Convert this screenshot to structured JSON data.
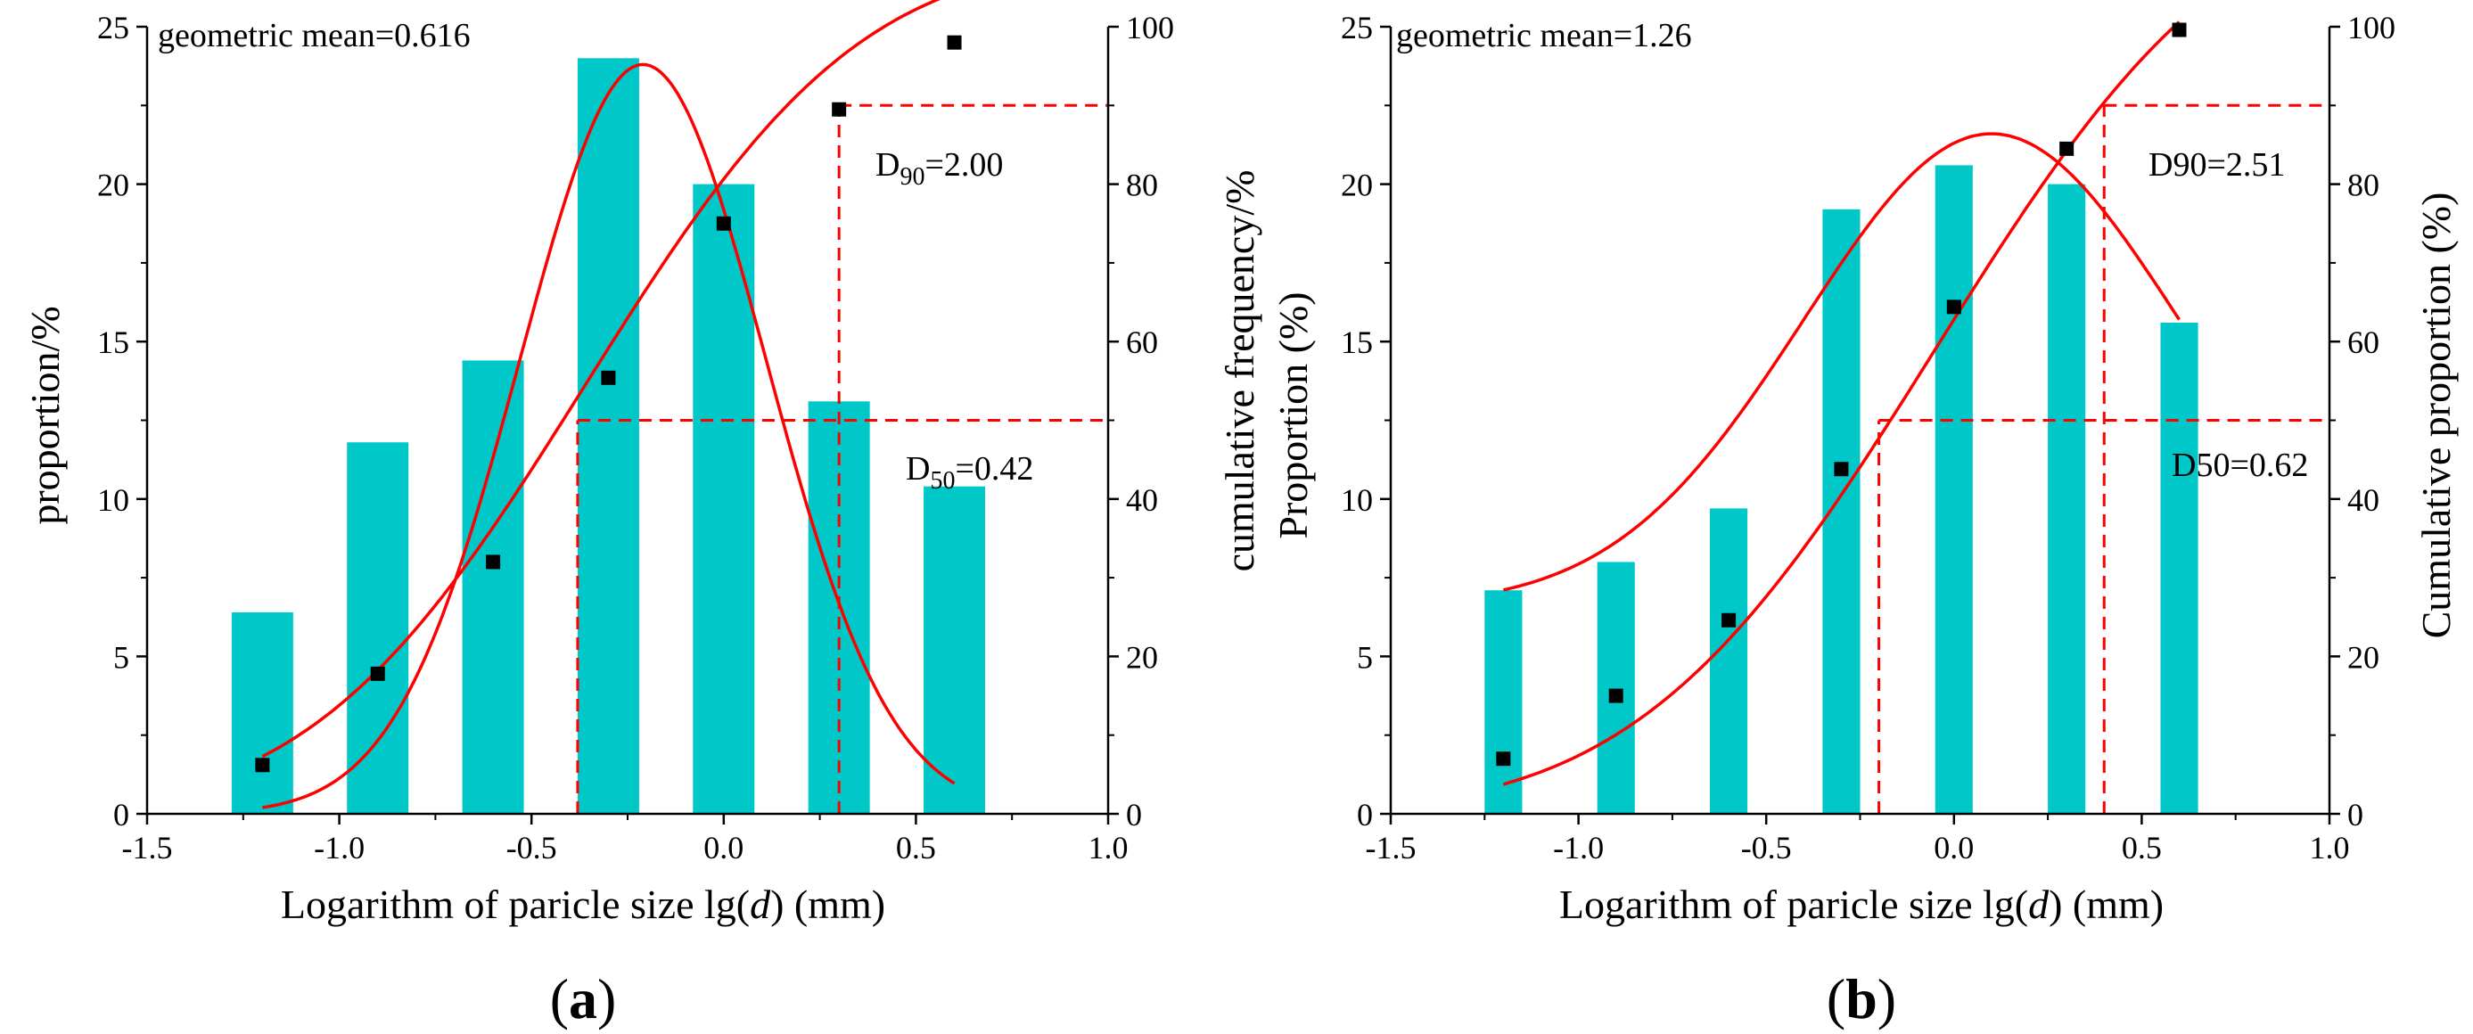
{
  "chart_data": [
    {
      "type": "bar",
      "panel_label": {
        "open": "(",
        "letter": "a",
        "close": ")"
      },
      "annotation": "geometric mean=0.616",
      "xlabel": {
        "pre": "Logarithm of paricle size lg(",
        "var": "d",
        "post": ") (mm)"
      },
      "ylabel": "proportion/%",
      "y2label": "cumulative frequency/%",
      "xlim": [
        -1.5,
        1.0
      ],
      "ylim": [
        0,
        25
      ],
      "y2lim": [
        0,
        100
      ],
      "x_ticks": [
        -1.5,
        -1.0,
        -0.5,
        0.0,
        0.5,
        1.0
      ],
      "x_tick_labels": [
        "-1.5",
        "-1.0",
        "-0.5",
        "0.0",
        "0.5",
        "1.0"
      ],
      "y_ticks": [
        0,
        5,
        10,
        15,
        20,
        25
      ],
      "y_tick_labels": [
        "0",
        "5",
        "10",
        "15",
        "20",
        "25"
      ],
      "y2_ticks": [
        0,
        20,
        40,
        60,
        80,
        100
      ],
      "y2_tick_labels": [
        "0",
        "20",
        "40",
        "60",
        "80",
        "100"
      ],
      "bar_width": 0.16,
      "bars": {
        "name": "proportion",
        "x": [
          -1.2,
          -0.9,
          -0.6,
          -0.3,
          0.0,
          0.3,
          0.6
        ],
        "values": [
          6.4,
          11.8,
          14.4,
          24.0,
          20.0,
          13.1,
          10.4
        ]
      },
      "cumulative": {
        "name": "cumulative frequency",
        "x": [
          -1.2,
          -0.9,
          -0.6,
          -0.3,
          0.0,
          0.3,
          0.6
        ],
        "values": [
          6.2,
          17.8,
          32.0,
          55.4,
          75.0,
          89.5,
          98.0
        ]
      },
      "normal_fit": {
        "amplitude": 23.8,
        "mean": -0.21,
        "sd": 0.32,
        "baseline": 0
      },
      "cdf_fit": {
        "mean": -0.36,
        "sd": 0.56,
        "lower": 0,
        "upper": 109
      },
      "fit_range_pdf": [
        -1.2,
        0.6
      ],
      "fit_range_cdf": [
        -1.2,
        0.6
      ],
      "markers": [
        {
          "label": "D",
          "sub": "90",
          "value": "=2.00",
          "x": 0.3,
          "y2": 90
        },
        {
          "label": "D",
          "sub": "50",
          "value": "=0.42",
          "x": -0.38,
          "y2": 50
        }
      ],
      "colors": {
        "bar": "#00C8C8",
        "fit": "#FF0000",
        "marker": "#000000",
        "guide": "#FF0000"
      }
    },
    {
      "type": "bar",
      "panel_label": {
        "open": "(",
        "letter": "b",
        "close": ")"
      },
      "annotation": "geometric mean=1.26",
      "xlabel": {
        "pre": "Logarithm of paricle size lg(",
        "var": "d",
        "post": ") (mm)"
      },
      "ylabel": "Proportion (%)",
      "y2label": "Cumulative proportion (%)",
      "xlim": [
        -1.5,
        1.0
      ],
      "ylim": [
        0,
        25
      ],
      "y2lim": [
        0,
        100
      ],
      "x_ticks": [
        -1.5,
        -1.0,
        -0.5,
        0.0,
        0.5,
        1.0
      ],
      "x_tick_labels": [
        "-1.5",
        "-1.0",
        "-0.5",
        "0.0",
        "0.5",
        "1.0"
      ],
      "y_ticks": [
        0,
        5,
        10,
        15,
        20,
        25
      ],
      "y_tick_labels": [
        "0",
        "5",
        "10",
        "15",
        "20",
        "25"
      ],
      "y2_ticks": [
        0,
        20,
        40,
        60,
        80,
        100
      ],
      "y2_tick_labels": [
        "0",
        "20",
        "40",
        "60",
        "80",
        "100"
      ],
      "bar_width": 0.1,
      "bars": {
        "name": "Proportion",
        "x": [
          -1.2,
          -0.9,
          -0.6,
          -0.3,
          0.0,
          0.3,
          0.6
        ],
        "values": [
          7.1,
          8.0,
          9.7,
          19.2,
          20.6,
          20.0,
          15.6
        ]
      },
      "cumulative": {
        "name": "Cumulative proportion",
        "x": [
          -1.2,
          -0.9,
          -0.6,
          -0.3,
          0.0,
          0.3,
          0.6
        ],
        "values": [
          7.0,
          15.0,
          24.6,
          43.8,
          64.4,
          84.5,
          99.6
        ]
      },
      "normal_fit": {
        "amplitude": 15.0,
        "mean": 0.1,
        "sd": 0.5,
        "baseline": 6.6
      },
      "cdf_fit": {
        "mean": -0.05,
        "sd": 0.62,
        "lower": 0,
        "upper": 118
      },
      "fit_range_pdf": [
        -1.2,
        0.6
      ],
      "fit_range_cdf": [
        -1.2,
        0.6
      ],
      "markers": [
        {
          "label": "D90",
          "sub": "",
          "value": "=2.51",
          "x": 0.4,
          "y2": 90
        },
        {
          "label": "D50",
          "sub": "",
          "value": "=0.62",
          "x": -0.2,
          "y2": 50
        }
      ],
      "colors": {
        "bar": "#00C8C8",
        "fit": "#FF0000",
        "marker": "#000000",
        "guide": "#FF0000"
      }
    }
  ]
}
